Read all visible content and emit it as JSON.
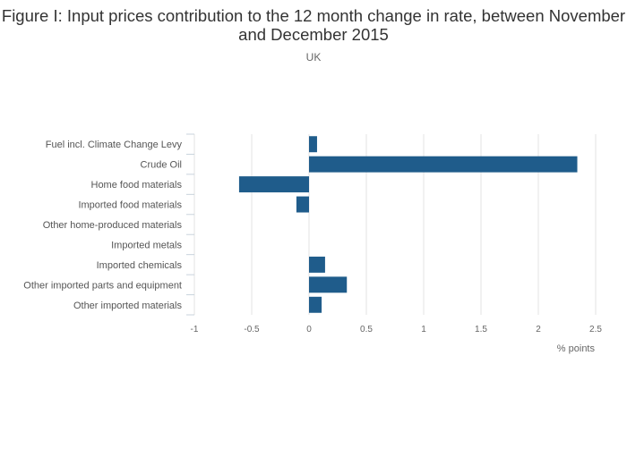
{
  "title": "Figure I: Input prices contribution to the 12 month change in rate, between November and December 2015",
  "subtitle": "UK",
  "colors": {
    "bar": "#1f5c8b",
    "grid": "#e3e3e3",
    "axis_text": "#666666",
    "category_text": "#555555",
    "tick_line": "#c8d3dc"
  },
  "chart_data": {
    "type": "bar",
    "orientation": "horizontal",
    "title": "Figure I: Input prices contribution to the 12 month change in rate, between November and December 2015",
    "subtitle": "UK",
    "xlabel": "% points",
    "ylabel": "",
    "xlim": [
      -1,
      2.5
    ],
    "xticks": [
      -1,
      -0.5,
      0,
      0.5,
      1,
      1.5,
      2,
      2.5
    ],
    "xtick_labels": [
      "-1",
      "-0.5",
      "0",
      "0.5",
      "1",
      "1.5",
      "2",
      "2.5"
    ],
    "grid": true,
    "categories": [
      "Fuel incl. Climate Change Levy",
      "Crude Oil",
      "Home food materials",
      "Imported food materials",
      "Other home-produced materials",
      "Imported metals",
      "Imported chemicals",
      "Other imported parts and equipment",
      "Other imported materials"
    ],
    "values": [
      0.07,
      2.34,
      -0.61,
      -0.11,
      0.0,
      0.0,
      0.14,
      0.33,
      0.11
    ]
  }
}
